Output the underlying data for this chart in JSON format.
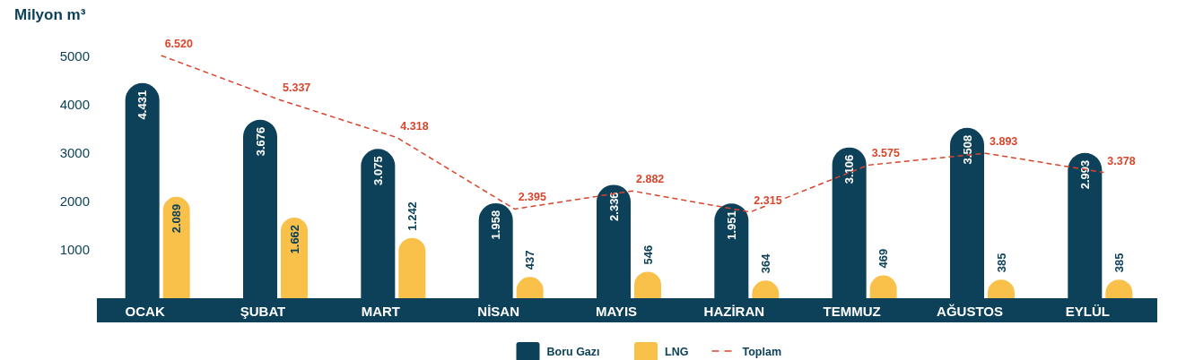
{
  "chart_data": {
    "type": "bar",
    "ylabel": "Milyon m³",
    "categories": [
      "OCAK",
      "ŞUBAT",
      "MART",
      "NİSAN",
      "MAYIS",
      "HAZİRAN",
      "TEMMUZ",
      "AĞUSTOS",
      "EYLÜL"
    ],
    "series": [
      {
        "name": "Boru Gazı",
        "color": "#0d4159",
        "values": [
          4431,
          3676,
          3075,
          1958,
          2336,
          1951,
          3106,
          3508,
          2993
        ],
        "value_labels": [
          "4.431",
          "3.676",
          "3.075",
          "1.958",
          "2.336",
          "1.951",
          "3.106",
          "3.508",
          "2.993"
        ]
      },
      {
        "name": "LNG",
        "color": "#f9c04a",
        "values": [
          2089,
          1662,
          1242,
          437,
          546,
          364,
          469,
          385,
          385
        ],
        "value_labels": [
          "2.089",
          "1.662",
          "1.242",
          "437",
          "546",
          "364",
          "469",
          "385",
          "385"
        ]
      },
      {
        "name": "Toplam",
        "type": "line",
        "axis": "y2",
        "color": "#d9452b",
        "line_style": "dashed",
        "marker": "none",
        "values": [
          6520,
          5337,
          4318,
          2395,
          2882,
          2315,
          3575,
          3893,
          3378
        ],
        "value_labels": [
          "6.520",
          "5.337",
          "4.318",
          "2.395",
          "2.882",
          "2.315",
          "3.575",
          "3.893",
          "3.378"
        ]
      }
    ],
    "ylim": [
      0,
      5000
    ],
    "yticks": [
      1000,
      2000,
      3000,
      4000,
      5000
    ],
    "grid": false,
    "legend": "bottom"
  }
}
